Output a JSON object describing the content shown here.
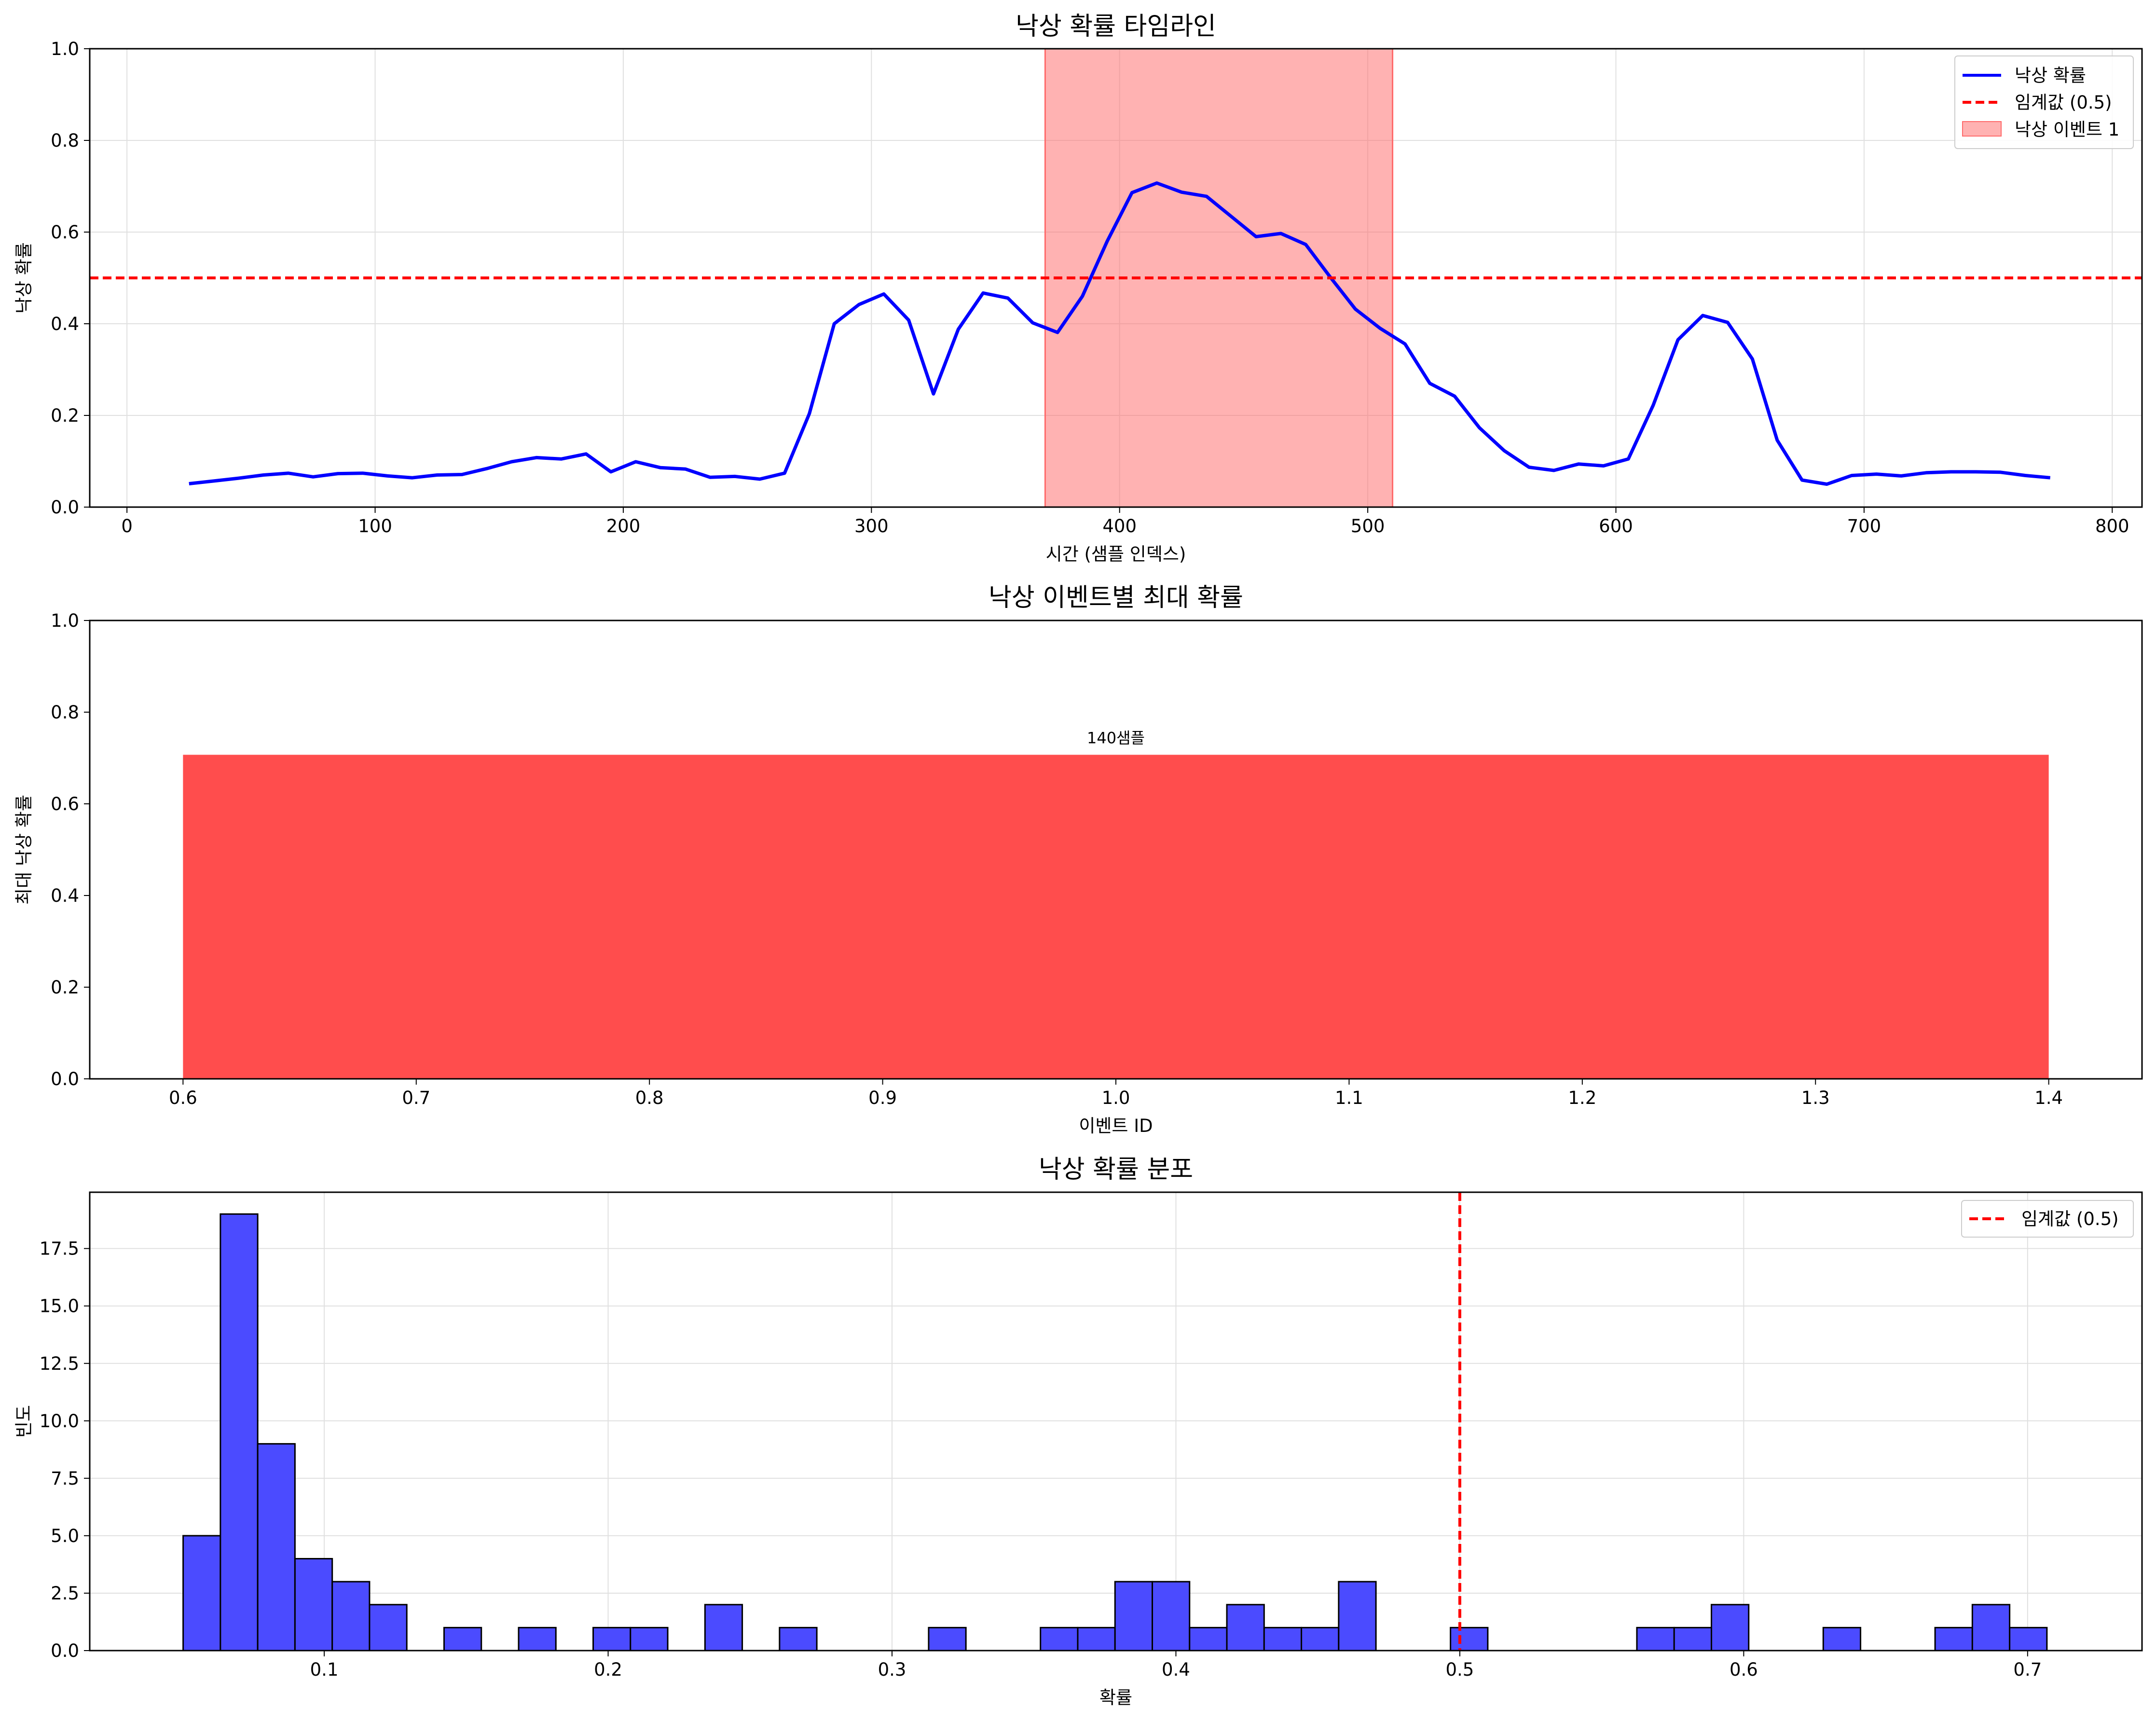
{
  "colors": {
    "line_blue": "#0000ff",
    "threshold_red": "#ff0000",
    "event_fill": "#ff6b6b",
    "bar_red": "#ff4d4d",
    "hist_blue": "#4b4bff",
    "grid": "#e0e0e0"
  },
  "chart_data": [
    {
      "type": "line",
      "title": "낙상 확률 타임라인",
      "xlabel": "시간 (샘플 인덱스)",
      "ylabel": "낙상 확률",
      "xlim": [
        -15,
        812
      ],
      "ylim": [
        0,
        1
      ],
      "xticks": [
        "0",
        "100",
        "200",
        "300",
        "400",
        "500",
        "600",
        "700",
        "800"
      ],
      "yticks": [
        "0.0",
        "0.2",
        "0.4",
        "0.6",
        "0.8",
        "1.0"
      ],
      "grid": true,
      "legend_position": "top-right",
      "legend": [
        "낙상 확률",
        "임계값 (0.5)",
        "낙상 이벤트 1"
      ],
      "series": [
        {
          "name": "낙상 확률",
          "x": [
            25,
            35,
            45,
            55,
            65,
            75,
            85,
            95,
            105,
            115,
            125,
            135,
            145,
            155,
            165,
            175,
            185,
            195,
            205,
            215,
            225,
            235,
            245,
            255,
            265,
            275,
            285,
            295,
            305,
            315,
            325,
            335,
            345,
            355,
            365,
            375,
            385,
            395,
            405,
            415,
            425,
            435,
            445,
            455,
            465,
            475,
            485,
            495,
            505,
            515,
            525,
            535,
            545,
            555,
            565,
            575,
            585,
            595,
            605,
            615,
            625,
            635,
            645,
            655,
            665,
            675,
            685,
            695,
            705,
            715,
            725,
            735,
            745,
            755,
            765,
            775
          ],
          "y": [
            0.051,
            0.057,
            0.063,
            0.07,
            0.074,
            0.066,
            0.073,
            0.074,
            0.068,
            0.064,
            0.07,
            0.071,
            0.084,
            0.099,
            0.108,
            0.105,
            0.116,
            0.077,
            0.099,
            0.086,
            0.083,
            0.065,
            0.067,
            0.061,
            0.074,
            0.204,
            0.4,
            0.442,
            0.465,
            0.408,
            0.247,
            0.388,
            0.467,
            0.456,
            0.402,
            0.381,
            0.46,
            0.58,
            0.686,
            0.707,
            0.687,
            0.678,
            0.634,
            0.59,
            0.597,
            0.573,
            0.501,
            0.432,
            0.39,
            0.356,
            0.27,
            0.242,
            0.173,
            0.123,
            0.087,
            0.08,
            0.094,
            0.09,
            0.105,
            0.222,
            0.365,
            0.418,
            0.403,
            0.323,
            0.146,
            0.059,
            0.05,
            0.069,
            0.072,
            0.068,
            0.075,
            0.077,
            0.077,
            0.076,
            0.069,
            0.064
          ]
        },
        {
          "name": "임계값 (0.5)",
          "y": 0.5
        }
      ],
      "shaded_regions": [
        {
          "name": "낙상 이벤트 1",
          "x0": 370,
          "x1": 510
        }
      ]
    },
    {
      "type": "bar",
      "title": "낙상 이벤트별 최대 확률",
      "xlabel": "이벤트 ID",
      "ylabel": "최대 낙상 확률",
      "xlim": [
        0.56,
        1.44
      ],
      "ylim": [
        0,
        1
      ],
      "xticks": [
        "0.6",
        "0.7",
        "0.8",
        "0.9",
        "1.0",
        "1.1",
        "1.2",
        "1.3",
        "1.4"
      ],
      "yticks": [
        "0.0",
        "0.2",
        "0.4",
        "0.6",
        "0.8",
        "1.0"
      ],
      "grid": false,
      "categories": [
        1
      ],
      "values": [
        0.707
      ],
      "bar_width": 0.8,
      "data_labels": [
        "140샘플"
      ]
    },
    {
      "type": "bar",
      "subtype": "histogram",
      "title": "낙상 확률 분포",
      "xlabel": "확률",
      "ylabel": "빈도",
      "xlim": [
        0.0174,
        0.7403
      ],
      "ylim": [
        0,
        19.95
      ],
      "xticks": [
        "0.1",
        "0.2",
        "0.3",
        "0.4",
        "0.5",
        "0.6",
        "0.7"
      ],
      "yticks": [
        "0.0",
        "2.5",
        "5.0",
        "7.5",
        "10.0",
        "12.5",
        "15.0",
        "17.5"
      ],
      "grid": true,
      "legend_position": "top-right",
      "legend": [
        "임계값 (0.5)"
      ],
      "threshold": 0.5,
      "bin_start": 0.0503,
      "bin_width": 0.01313,
      "values": [
        5,
        19,
        9,
        4,
        3,
        2,
        0,
        1,
        0,
        1,
        0,
        1,
        1,
        0,
        2,
        0,
        1,
        0,
        0,
        0,
        1,
        0,
        0,
        1,
        1,
        3,
        3,
        1,
        2,
        1,
        1,
        3,
        0,
        0,
        1,
        0,
        0,
        0,
        0,
        1,
        1,
        2,
        0,
        0,
        1,
        0,
        0,
        1,
        2,
        1
      ]
    }
  ]
}
